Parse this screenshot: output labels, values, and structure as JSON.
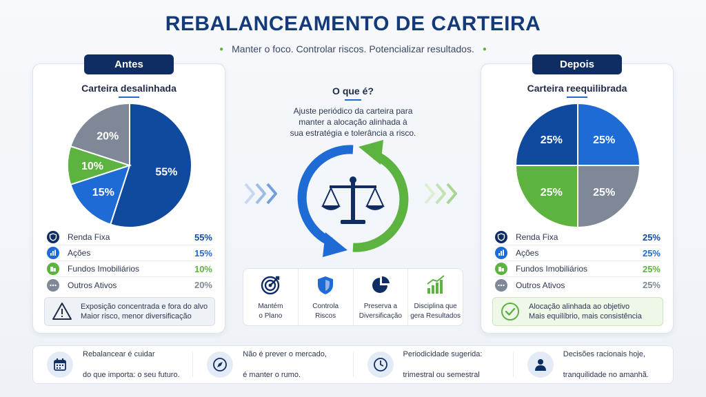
{
  "header": {
    "title": "REBALANCEAMENTO DE CARTEIRA",
    "subtitle": "Manter o foco. Controlar riscos. Potencializar resultados."
  },
  "before": {
    "pill": "Antes",
    "subtitle": "Carteira desalinhada",
    "slices": [
      {
        "label": "55%",
        "value": 55,
        "color": "#0f4a9e"
      },
      {
        "label": "15%",
        "value": 15,
        "color": "#1e6bd6"
      },
      {
        "label": "10%",
        "value": 10,
        "color": "#5cb33f"
      },
      {
        "label": "20%",
        "value": 20,
        "color": "#7f8896"
      }
    ],
    "legend": [
      {
        "label": "Renda Fixa",
        "value": "55%",
        "color": "#0f2d63",
        "icon": "shield-icon"
      },
      {
        "label": "Ações",
        "value": "15%",
        "color": "#1e6bd6",
        "icon": "bar-chart-icon"
      },
      {
        "label": "Fundos Imobiliários",
        "value": "10%",
        "color": "#5cb33f",
        "icon": "building-icon"
      },
      {
        "label": "Outros Ativos",
        "value": "20%",
        "color": "#7f8896",
        "icon": "dots-icon"
      }
    ],
    "note_line1": "Exposição concentrada e fora do alvo",
    "note_line2": "Maior risco, menor diversificação"
  },
  "after": {
    "pill": "Depois",
    "subtitle": "Carteira reequilibrada",
    "slices": [
      {
        "label": "25%",
        "value": 25,
        "color": "#1e6bd6"
      },
      {
        "label": "25%",
        "value": 25,
        "color": "#7f8896"
      },
      {
        "label": "25%",
        "value": 25,
        "color": "#5cb33f"
      },
      {
        "label": "25%",
        "value": 25,
        "color": "#0f4a9e"
      }
    ],
    "legend": [
      {
        "label": "Renda Fixa",
        "value": "25%",
        "color": "#0f2d63",
        "icon": "shield-icon"
      },
      {
        "label": "Ações",
        "value": "25%",
        "color": "#1e6bd6",
        "icon": "bar-chart-icon"
      },
      {
        "label": "Fundos Imobiliários",
        "value": "25%",
        "color": "#5cb33f",
        "icon": "building-icon"
      },
      {
        "label": "Outros Ativos",
        "value": "25%",
        "color": "#7f8896",
        "icon": "dots-icon"
      }
    ],
    "note_line1": "Alocação alinhada ao objetivo",
    "note_line2": "Mais equilíbrio, mais consistência"
  },
  "center": {
    "question": "O que é?",
    "desc_line1": "Ajuste periódico da carteira para",
    "desc_line2": "manter a alocação alinhada à",
    "desc_line3": "sua estratégia e tolerância a risco.",
    "features": [
      {
        "line1": "Mantém",
        "line2": "o Plano",
        "icon": "target-icon"
      },
      {
        "line1": "Controla",
        "line2": "Riscos",
        "icon": "shield-icon"
      },
      {
        "line1": "Preserva a",
        "line2": "Diversificação",
        "icon": "pie-chart-icon"
      },
      {
        "line1": "Disciplina que",
        "line2": "gera Resultados",
        "icon": "growth-chart-icon"
      }
    ]
  },
  "bottom": [
    {
      "line1": "Rebalancear é cuidar",
      "line2": "do que importa: o seu futuro.",
      "icon": "calendar-icon"
    },
    {
      "line1": "Não é prever o mercado,",
      "line2": "é manter o rumo.",
      "icon": "compass-icon"
    },
    {
      "line1": "Periodicidade sugerida:",
      "line2": "trimestral ou semestral",
      "icon": "clock-icon"
    },
    {
      "line1": "Decisões racionais hoje,",
      "line2": "tranquilidade no amanhã.",
      "icon": "person-icon"
    }
  ],
  "colors": {
    "navy": "#0f2d63",
    "blue": "#1e6bd6",
    "green": "#5cb33f",
    "gray": "#7f8896"
  }
}
